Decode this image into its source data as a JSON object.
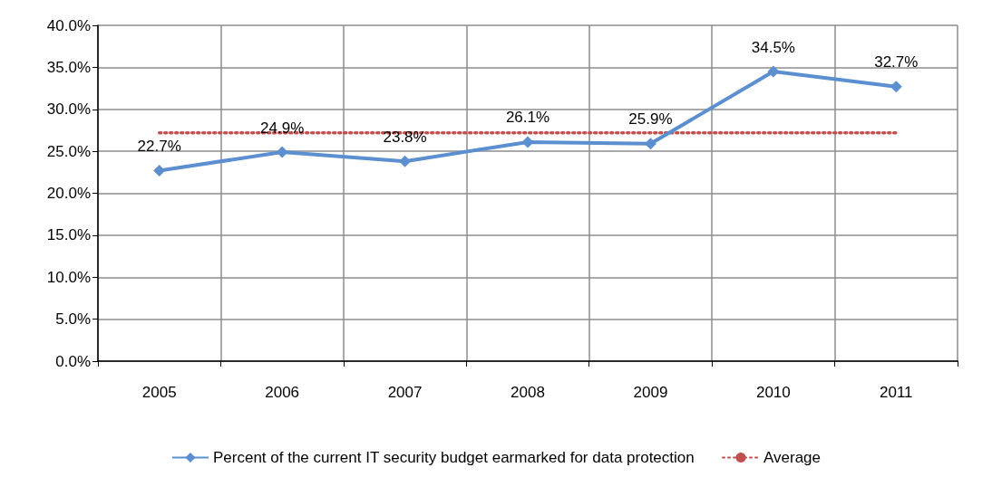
{
  "chart_data": {
    "type": "line",
    "categories": [
      "2005",
      "2006",
      "2007",
      "2008",
      "2009",
      "2010",
      "2011"
    ],
    "series": [
      {
        "name": "Percent of the current IT security budget earmarked for data protection",
        "color": "#5b8fcf",
        "values": [
          22.7,
          24.9,
          23.8,
          26.1,
          25.9,
          34.5,
          32.7
        ],
        "value_labels": [
          "22.7%",
          "24.9%",
          "23.8%",
          "26.1%",
          "25.9%",
          "34.5%",
          "32.7%"
        ],
        "marker": "diamond",
        "line_style": "solid"
      },
      {
        "name": "Average",
        "color": "#c0504d",
        "values": [
          27.2,
          27.2,
          27.2,
          27.2,
          27.2,
          27.2,
          27.2
        ],
        "marker": "none",
        "line_style": "dotted"
      }
    ],
    "ylim": [
      0,
      40
    ],
    "yticks": [
      {
        "value": 0,
        "label": "0.0%"
      },
      {
        "value": 5,
        "label": "5.0%"
      },
      {
        "value": 10,
        "label": "10.0%"
      },
      {
        "value": 15,
        "label": "15.0%"
      },
      {
        "value": 20,
        "label": "20.0%"
      },
      {
        "value": 25,
        "label": "25.0%"
      },
      {
        "value": 30,
        "label": "30.0%"
      },
      {
        "value": 35,
        "label": "35.0%"
      },
      {
        "value": 40,
        "label": "40.0%"
      }
    ],
    "grid": true,
    "legend": "bottom"
  }
}
